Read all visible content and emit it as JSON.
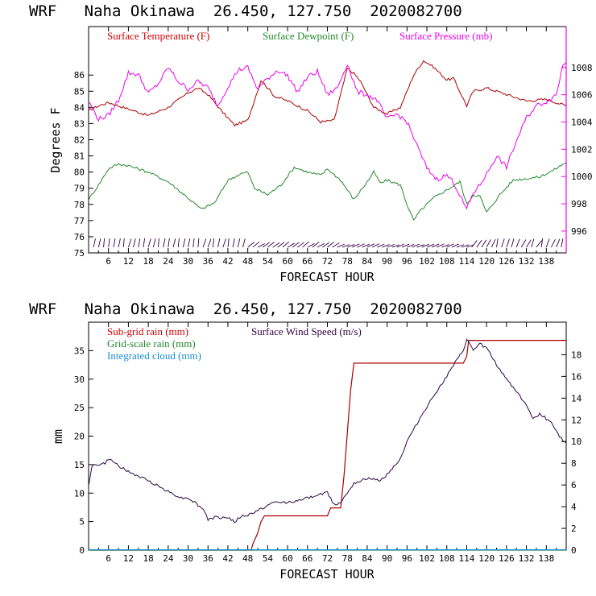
{
  "charts": [
    {
      "title": "WRF   Naha Okinawa  26.450, 127.750  2020082700",
      "chart_data": {
        "type": "line",
        "xlabel": "FORECAST HOUR",
        "ylabel": "Degrees F",
        "y2label": "",
        "xlim": [
          0,
          144
        ],
        "ylim": [
          75,
          89
        ],
        "y2lim": [
          994.4,
          1011
        ],
        "xticks": [
          6,
          12,
          18,
          24,
          30,
          36,
          42,
          48,
          54,
          60,
          66,
          72,
          78,
          84,
          90,
          96,
          102,
          108,
          114,
          120,
          126,
          132,
          138
        ],
        "yticks": [
          75,
          76,
          77,
          78,
          79,
          80,
          81,
          82,
          83,
          84,
          85,
          86
        ],
        "y2ticks": [
          996,
          998,
          1000,
          1002,
          1004,
          1006,
          1008
        ],
        "legend": [
          {
            "label": "Surface Temperature (F)",
            "color": "#cc0000"
          },
          {
            "label": "Surface Dewpoint (F)",
            "color": "#22882b"
          },
          {
            "label": "Surface Pressure (mb)",
            "color": "#ee00ee"
          }
        ],
        "series": [
          {
            "name": "Surface Temperature (F)",
            "axis": "left",
            "color": "#aa0000",
            "x": [
              0,
              3,
              6,
              12,
              18,
              24,
              30,
              33,
              36,
              40,
              44,
              48,
              52,
              56,
              60,
              66,
              70,
              74,
              76,
              78,
              80,
              82,
              86,
              90,
              94,
              98,
              101,
              104,
              108,
              110,
              114,
              116,
              120,
              126,
              132,
              138,
              144
            ],
            "y": [
              83.8,
              84.1,
              84.3,
              83.9,
              83.5,
              84.0,
              84.9,
              85.2,
              84.8,
              83.8,
              82.9,
              83.2,
              85.7,
              84.7,
              84.4,
              83.8,
              83.1,
              83.2,
              84.8,
              86.4,
              86.1,
              85.6,
              84.0,
              83.6,
              84.0,
              86.0,
              86.9,
              86.5,
              85.7,
              85.8,
              84.1,
              85.0,
              85.2,
              84.8,
              84.4,
              84.5,
              84.1
            ]
          },
          {
            "name": "Surface Dewpoint (F)",
            "axis": "left",
            "color": "#22882b",
            "x": [
              0,
              3,
              6,
              9,
              12,
              18,
              24,
              30,
              34,
              38,
              42,
              46,
              48,
              50,
              54,
              58,
              62,
              66,
              70,
              72,
              76,
              80,
              84,
              86,
              88,
              90,
              94,
              96,
              98,
              100,
              104,
              108,
              112,
              114,
              116,
              118,
              120,
              124,
              128,
              132,
              136,
              140,
              144
            ],
            "y": [
              78.3,
              79.2,
              80.2,
              80.5,
              80.4,
              80.0,
              79.4,
              78.4,
              77.7,
              78.1,
              79.5,
              79.9,
              80.0,
              79.0,
              78.6,
              79.2,
              80.3,
              80.0,
              79.8,
              80.2,
              79.5,
              78.3,
              79.4,
              80.0,
              79.3,
              79.5,
              79.2,
              78.0,
              77.0,
              77.6,
              78.4,
              78.9,
              79.4,
              78.0,
              78.6,
              78.5,
              77.5,
              78.6,
              79.5,
              79.6,
              79.7,
              80.1,
              80.6
            ]
          },
          {
            "name": "Surface Pressure (mb)",
            "axis": "right",
            "color": "#ee00ee",
            "x": [
              0,
              3,
              6,
              9,
              12,
              15,
              18,
              21,
              24,
              27,
              30,
              33,
              36,
              39,
              42,
              45,
              48,
              51,
              54,
              57,
              60,
              63,
              66,
              69,
              72,
              75,
              78,
              81,
              84,
              87,
              90,
              93,
              96,
              99,
              102,
              105,
              108,
              110,
              112,
              114,
              116,
              118,
              120,
              123,
              126,
              129,
              132,
              135,
              138,
              141,
              143,
              144
            ],
            "y": [
              1005.5,
              1004.2,
              1004.5,
              1005.6,
              1007.6,
              1007.5,
              1006.1,
              1006.8,
              1008.0,
              1007.0,
              1006.4,
              1007.0,
              1006.5,
              1005.2,
              1006.6,
              1007.8,
              1008.0,
              1006.4,
              1007.2,
              1007.8,
              1007.4,
              1006.2,
              1007.3,
              1007.7,
              1006.0,
              1006.5,
              1008.3,
              1006.2,
              1006.0,
              1005.6,
              1004.2,
              1004.6,
              1004.0,
              1002.3,
              1000.6,
              999.8,
              1000.1,
              999.6,
              998.6,
              997.6,
              998.8,
              999.4,
              1000.2,
              1001.5,
              1000.7,
              1002.6,
              1004.3,
              1005.2,
              1005.5,
              1006.0,
              1008.2,
              1008.5
            ]
          }
        ],
        "wind_barbs": "row of wind barbs along the 75-76 band"
      }
    },
    {
      "title": "WRF   Naha Okinawa  26.450, 127.750  2020082700",
      "chart_data": {
        "type": "line",
        "xlabel": "FORECAST HOUR",
        "ylabel": "mm",
        "xlim": [
          0,
          144
        ],
        "ylim": [
          0,
          40
        ],
        "y2lim": [
          0,
          21
        ],
        "xticks": [
          6,
          12,
          18,
          24,
          30,
          36,
          42,
          48,
          54,
          60,
          66,
          72,
          78,
          84,
          90,
          96,
          102,
          108,
          114,
          120,
          126,
          132,
          138
        ],
        "yticks": [
          0,
          5,
          10,
          15,
          20,
          25,
          30,
          35
        ],
        "y2ticks": [
          0,
          2,
          4,
          6,
          8,
          10,
          12,
          14,
          16,
          18
        ],
        "legend": [
          {
            "label": "Sub-grid rain (mm)",
            "color": "#cc0000"
          },
          {
            "label": "Surface Wind Speed (m/s)",
            "color": "#330044"
          },
          {
            "label": "Grid-scale rain (mm)",
            "color": "#22882b"
          },
          {
            "label": "Integrated cloud (mm)",
            "color": "#1a8fd6"
          }
        ],
        "series": [
          {
            "name": "Sub-grid rain (mm)",
            "axis": "left",
            "color": "#aa0000",
            "x": [
              0,
              49,
              49.5,
              51,
              52,
              53,
              54,
              72,
              73,
              76,
              77,
              79,
              80,
              113,
              114,
              114.6,
              144
            ],
            "y": [
              0,
              0,
              1,
              3,
              5,
              6,
              6,
              6,
              7.4,
              7.4,
              13,
              28,
              32.8,
              32.8,
              34,
              36.8,
              36.8
            ]
          },
          {
            "name": "Surface Wind Speed (m/s)",
            "axis": "right",
            "color": "#2a0845",
            "x": [
              0,
              1,
              2,
              5,
              6,
              8,
              12,
              18,
              24,
              28,
              30,
              32,
              35,
              36,
              38,
              42,
              44,
              46,
              48,
              52,
              56,
              60,
              64,
              68,
              72,
              74,
              76,
              80,
              84,
              88,
              90,
              94,
              96,
              100,
              104,
              108,
              110,
              113,
              114,
              116,
              118,
              120,
              124,
              128,
              132,
              134,
              136,
              140,
              142,
              144
            ],
            "y": [
              6.0,
              7.8,
              7.8,
              8.0,
              8.4,
              8.0,
              7.2,
              6.4,
              5.4,
              4.8,
              4.8,
              4.4,
              3.6,
              2.8,
              3.0,
              3.0,
              2.6,
              3.1,
              3.2,
              3.8,
              4.4,
              4.4,
              4.6,
              5.0,
              5.3,
              4.2,
              4.4,
              6.2,
              6.6,
              6.4,
              7.0,
              8.4,
              10.0,
              12.2,
              14.2,
              16.0,
              17.0,
              18.4,
              19.4,
              18.4,
              19.0,
              18.6,
              16.6,
              15.0,
              13.4,
              12.0,
              12.6,
              11.6,
              10.4,
              9.9
            ]
          },
          {
            "name": "Grid-scale rain (mm)",
            "axis": "left",
            "color": "#22882b",
            "x": [
              0,
              144
            ],
            "y": [
              0,
              0
            ]
          },
          {
            "name": "Integrated cloud (mm)",
            "axis": "left",
            "color": "#1a8fd6",
            "x": [
              0,
              144
            ],
            "y": [
              0.05,
              0.05
            ]
          }
        ]
      }
    }
  ]
}
